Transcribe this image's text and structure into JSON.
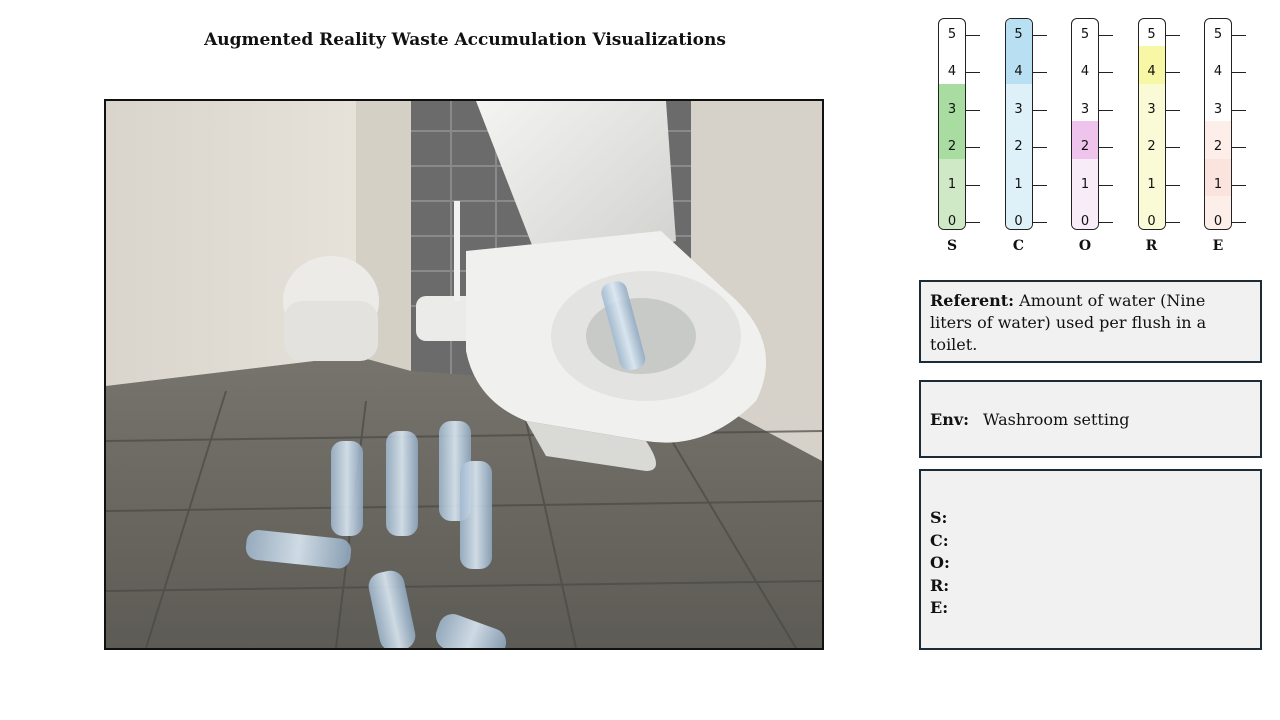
{
  "title": "Augmented Reality Waste Accumulation Visualizations",
  "scene": {
    "alt": "bathroom-with-virtual-water-bottles"
  },
  "gauges": {
    "tick_labels": [
      "0",
      "1",
      "2",
      "3",
      "4",
      "5"
    ],
    "items": [
      {
        "letter": "S",
        "color": "#cfe9c7",
        "level": 1,
        "highlight_color": "#a9dca0",
        "highlight_range": [
          2,
          3
        ]
      },
      {
        "letter": "C",
        "color": "#dff1f8",
        "level": 5,
        "highlight_color": "#b8e0f2",
        "highlight_range": [
          4,
          5
        ]
      },
      {
        "letter": "O",
        "color": "#f8ecf8",
        "level": 1,
        "highlight_color": "#efc4ec",
        "highlight_range": [
          2,
          2
        ]
      },
      {
        "letter": "R",
        "color": "#fafad6",
        "level": 3,
        "highlight_color": "#f8f7a6",
        "highlight_range": [
          4,
          4
        ]
      },
      {
        "letter": "E",
        "color": "#fdeeea",
        "level": 2,
        "highlight_color": "#fbe4de",
        "highlight_range": [
          1,
          1
        ]
      }
    ]
  },
  "referent": {
    "label": "Referent:",
    "text": "Amount of water (Nine liters of water) used per flush in a toilet."
  },
  "env": {
    "label": "Env:",
    "value": "Washroom setting"
  },
  "scores": {
    "s": "S:",
    "c": "C:",
    "o": "O:",
    "r": "R:",
    "e": "E:"
  }
}
